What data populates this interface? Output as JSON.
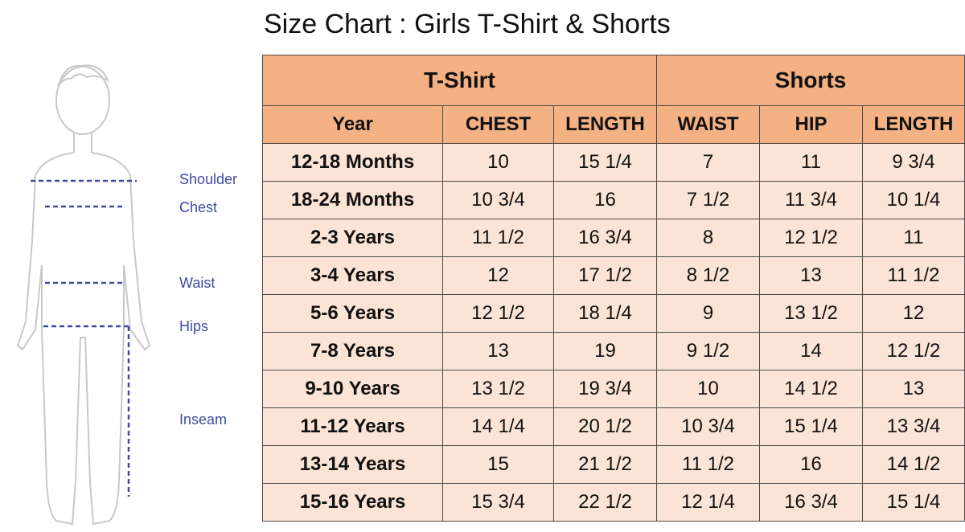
{
  "title": "Size Chart : Girls T-Shirt & Shorts",
  "figure": {
    "labels": [
      "Shoulder",
      "Chest",
      "Waist",
      "Hips",
      "Inseam"
    ]
  },
  "table": {
    "groups": [
      "T-Shirt",
      "Shorts"
    ],
    "columns": [
      "Year",
      "CHEST",
      "LENGTH",
      "WAIST",
      "HIP",
      "LENGTH"
    ],
    "rows": [
      [
        "12-18 Months",
        "10",
        "15 1/4",
        "7",
        "11",
        "9 3/4"
      ],
      [
        "18-24 Months",
        "10 3/4",
        "16",
        "7 1/2",
        "11 3/4",
        "10 1/4"
      ],
      [
        "2-3 Years",
        "11 1/2",
        "16 3/4",
        "8",
        "12 1/2",
        "11"
      ],
      [
        "3-4 Years",
        "12",
        "17 1/2",
        "8 1/2",
        "13",
        "11 1/2"
      ],
      [
        "5-6 Years",
        "12 1/2",
        "18 1/4",
        "9",
        "13 1/2",
        "12"
      ],
      [
        "7-8 Years",
        "13",
        "19",
        "9 1/2",
        "14",
        "12 1/2"
      ],
      [
        "9-10 Years",
        "13 1/2",
        "19 3/4",
        "10",
        "14 1/2",
        "13"
      ],
      [
        "11-12 Years",
        "14 1/4",
        "20 1/2",
        "10 3/4",
        "15 1/4",
        "13 3/4"
      ],
      [
        "13-14 Years",
        "15",
        "21 1/2",
        "11 1/2",
        "16",
        "14 1/2"
      ],
      [
        "15-16 Years",
        "15 3/4",
        "22 1/2",
        "12 1/4",
        "16 3/4",
        "15 1/4"
      ]
    ]
  },
  "colors": {
    "header_fill": "#f4b183",
    "body_fill": "#fbe4d6",
    "measure_line": "#3f4aa0"
  }
}
